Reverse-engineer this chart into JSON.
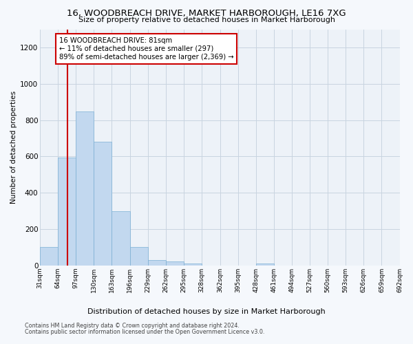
{
  "title": "16, WOODBREACH DRIVE, MARKET HARBOROUGH, LE16 7XG",
  "subtitle": "Size of property relative to detached houses in Market Harborough",
  "xlabel": "Distribution of detached houses by size in Market Harborough",
  "ylabel": "Number of detached properties",
  "footnote1": "Contains HM Land Registry data © Crown copyright and database right 2024.",
  "footnote2": "Contains public sector information licensed under the Open Government Licence v3.0.",
  "bar_color": "#c2d8ef",
  "bar_edge_color": "#7aafd4",
  "grid_color": "#c8d4e0",
  "annotation_box_edgecolor": "#cc0000",
  "annotation_line_color": "#cc0000",
  "property_size": 81,
  "annotation_line1": "16 WOODBREACH DRIVE: 81sqm",
  "annotation_line2": "← 11% of detached houses are smaller (297)",
  "annotation_line3": "89% of semi-detached houses are larger (2,369) →",
  "bins": [
    31,
    64,
    97,
    130,
    163,
    196,
    229,
    262,
    295,
    328,
    362,
    395,
    428,
    461,
    494,
    527,
    560,
    593,
    626,
    659,
    692
  ],
  "bin_labels": [
    "31sqm",
    "64sqm",
    "97sqm",
    "130sqm",
    "163sqm",
    "196sqm",
    "229sqm",
    "262sqm",
    "295sqm",
    "328sqm",
    "362sqm",
    "395sqm",
    "428sqm",
    "461sqm",
    "494sqm",
    "527sqm",
    "560sqm",
    "593sqm",
    "626sqm",
    "659sqm",
    "692sqm"
  ],
  "counts": [
    100,
    595,
    848,
    680,
    300,
    100,
    30,
    22,
    10,
    0,
    0,
    0,
    10,
    0,
    0,
    0,
    0,
    0,
    0,
    0
  ],
  "ylim": [
    0,
    1300
  ],
  "yticks": [
    0,
    200,
    400,
    600,
    800,
    1000,
    1200
  ],
  "background_color": "#edf2f8",
  "fig_background_color": "#f5f8fc"
}
